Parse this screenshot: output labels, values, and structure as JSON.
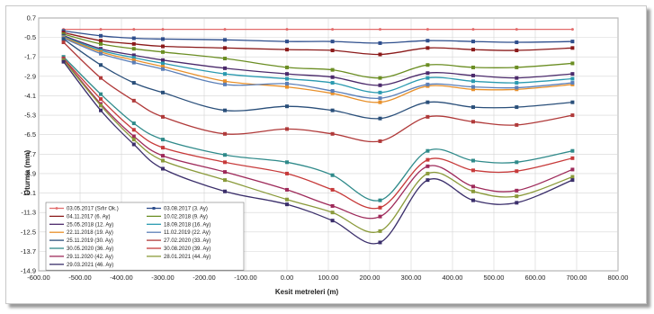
{
  "chart_data": {
    "type": "line",
    "xlabel": "Kesit metreleri (m)",
    "ylabel": "Oturma (mm)",
    "xlim": [
      -600,
      800
    ],
    "ylim": [
      -14.9,
      0.7
    ],
    "xticks": [
      "-600.00",
      "-500.00",
      "-400.00",
      "-300.00",
      "-200.00",
      "-100.00",
      "0.00",
      "100.00",
      "200.00",
      "300.00",
      "400.00",
      "500.00",
      "600.00",
      "700.00",
      "800.00"
    ],
    "yticks": [
      "0.7",
      "-0.5",
      "-1.7",
      "-2.9",
      "-4.1",
      "-5.3",
      "-6.5",
      "-7.7",
      "-8.9",
      "-10.1",
      "-11.3",
      "-12.5",
      "-13.7",
      "-14.9"
    ],
    "grid": true,
    "legend_position": "bottom-left",
    "x": [
      -540,
      -450,
      -370,
      -300,
      -150,
      0,
      110,
      225,
      340,
      450,
      555,
      690
    ],
    "series": [
      {
        "name": "03.05.2017 (Sıfır Ok.)",
        "color": "#e26b6b",
        "marker": "circle",
        "values": [
          0.0,
          0.0,
          0.0,
          0.0,
          0.0,
          0.0,
          0.0,
          0.0,
          0.0,
          0.0,
          0.0,
          0.0
        ]
      },
      {
        "name": "03.08.2017 (3. Ay)",
        "color": "#2e4e8c",
        "marker": "square",
        "values": [
          -0.1,
          -0.4,
          -0.55,
          -0.6,
          -0.65,
          -0.75,
          -0.75,
          -0.85,
          -0.7,
          -0.75,
          -0.8,
          -0.75
        ]
      },
      {
        "name": "04.11.2017 (6. Ay)",
        "color": "#8b1a1a",
        "values": [
          -0.2,
          -0.7,
          -0.9,
          -1.05,
          -1.15,
          -1.25,
          -1.3,
          -1.55,
          -1.15,
          -1.25,
          -1.3,
          -1.15
        ]
      },
      {
        "name": "10.02.2018 (9. Ay)",
        "color": "#6b8e23",
        "values": [
          -0.3,
          -0.9,
          -1.2,
          -1.4,
          -1.8,
          -2.35,
          -2.5,
          -3.0,
          -2.2,
          -2.35,
          -2.35,
          -2.1
        ]
      },
      {
        "name": "25.05.2018 (12. Ay)",
        "color": "#4b2a6b",
        "values": [
          -0.4,
          -1.2,
          -1.6,
          -1.9,
          -2.4,
          -2.75,
          -2.95,
          -3.45,
          -2.7,
          -2.85,
          -3.0,
          -2.75
        ]
      },
      {
        "name": "18.09.2018 (16. Ay)",
        "color": "#2a9ab0",
        "values": [
          -0.45,
          -1.3,
          -1.75,
          -2.1,
          -2.75,
          -3.05,
          -3.3,
          -3.9,
          -3.0,
          -3.2,
          -3.3,
          -3.05
        ]
      },
      {
        "name": "22.11.2018 (19. Ay)",
        "color": "#e8902a",
        "values": [
          -0.5,
          -1.4,
          -1.9,
          -2.3,
          -3.2,
          -3.55,
          -3.95,
          -4.5,
          -3.5,
          -3.7,
          -3.7,
          -3.4
        ]
      },
      {
        "name": "11.02.2019 (22. Ay)",
        "color": "#5b7fb8",
        "values": [
          -0.55,
          -1.5,
          -2.05,
          -2.45,
          -3.4,
          -3.35,
          -3.8,
          -4.25,
          -3.4,
          -3.55,
          -3.6,
          -3.3
        ]
      },
      {
        "name": "25.11.2019 (30. Ay)",
        "color": "#2a4f7a",
        "values": [
          -0.6,
          -2.2,
          -3.3,
          -3.9,
          -5.0,
          -4.75,
          -5.0,
          -5.5,
          -4.5,
          -4.8,
          -4.8,
          -4.5
        ]
      },
      {
        "name": "27.02.2020 (33. Ay)",
        "color": "#b03a3a",
        "values": [
          -0.8,
          -3.0,
          -4.4,
          -5.4,
          -6.45,
          -6.15,
          -6.45,
          -6.9,
          -5.4,
          -5.7,
          -5.9,
          -5.3
        ]
      },
      {
        "name": "30.05.2020 (36. Ay)",
        "color": "#2f8a8a",
        "values": [
          -1.7,
          -4.0,
          -5.8,
          -6.8,
          -7.75,
          -8.2,
          -9.0,
          -10.55,
          -7.5,
          -8.1,
          -8.2,
          -7.5
        ]
      },
      {
        "name": "30.08.2020 (39. Ay)",
        "color": "#c73a3a",
        "values": [
          -1.8,
          -4.3,
          -6.2,
          -7.3,
          -8.2,
          -8.9,
          -9.9,
          -11.0,
          -8.05,
          -8.7,
          -8.75,
          -7.95
        ]
      },
      {
        "name": "29.11.2020 (42. Ay)",
        "color": "#9e2a5a",
        "values": [
          -1.85,
          -4.6,
          -6.6,
          -7.8,
          -8.8,
          -9.9,
          -10.9,
          -11.55,
          -8.45,
          -9.7,
          -9.95,
          -8.65
        ]
      },
      {
        "name": "28.01.2021 (44. Ay)",
        "color": "#8a9a3a",
        "values": [
          -1.9,
          -4.7,
          -6.8,
          -8.1,
          -9.3,
          -10.5,
          -11.3,
          -12.45,
          -8.9,
          -10.0,
          -10.3,
          -9.1
        ]
      },
      {
        "name": "29.03.2021 (46. Ay)",
        "color": "#3b2f6b",
        "values": [
          -2.0,
          -5.0,
          -7.1,
          -8.6,
          -10.0,
          -10.8,
          -11.8,
          -13.15,
          -9.3,
          -10.55,
          -10.7,
          -9.3
        ]
      }
    ]
  }
}
